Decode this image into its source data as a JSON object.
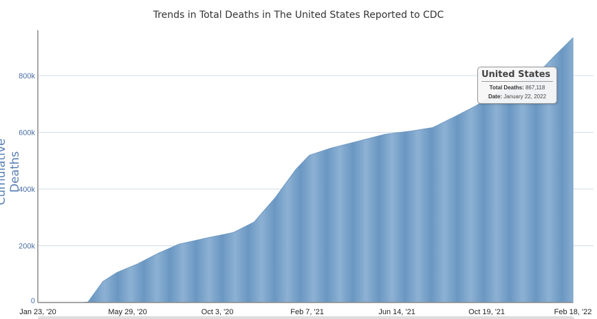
{
  "chart_data": {
    "type": "area",
    "title": "Trends in Total Deaths in The United States Reported to CDC",
    "ylabel": "Cumulative Deaths",
    "xlabel": "",
    "ylim": [
      0,
      960000
    ],
    "xlim": [
      "2020-01-23",
      "2022-02-18"
    ],
    "grid": true,
    "y_ticks": [
      "0",
      "200k",
      "400k",
      "600k",
      "800k"
    ],
    "y_tick_values": [
      0,
      200000,
      400000,
      600000,
      800000
    ],
    "x_ticks": [
      "Jan 23, '20",
      "May 29, '20",
      "Oct 3, '20",
      "Feb 7, '21",
      "Jun 14, '21",
      "Oct 19, '21",
      "Feb 18, '22"
    ],
    "x_tick_dates": [
      "2020-01-23",
      "2020-05-29",
      "2020-10-03",
      "2021-02-07",
      "2021-06-14",
      "2021-10-19",
      "2022-02-18"
    ],
    "color": "#7aa3c9",
    "series": [
      {
        "x": [
          "2020-01-23",
          "2020-03-26",
          "2020-04-03",
          "2020-04-24",
          "2020-05-14",
          "2020-06-12",
          "2020-07-11",
          "2020-08-09",
          "2020-09-17",
          "2020-10-26",
          "2020-11-24",
          "2020-12-24",
          "2021-01-22",
          "2021-02-10",
          "2021-03-11",
          "2021-04-19",
          "2021-05-28",
          "2021-07-06",
          "2021-08-04",
          "2021-09-03",
          "2021-10-02",
          "2021-10-31",
          "2021-11-29",
          "2022-01-07",
          "2022-01-22",
          "2022-02-18"
        ],
        "values": [
          0,
          0,
          2000,
          74000,
          106000,
          136000,
          173000,
          205000,
          227000,
          247000,
          284000,
          370000,
          469000,
          519000,
          543000,
          568000,
          593000,
          605000,
          617000,
          654000,
          691000,
          736000,
          770000,
          827000,
          867118,
          933000
        ]
      }
    ],
    "tooltip": {
      "title": "United States",
      "deaths_label": "Total Deaths:",
      "deaths_value": "867,118",
      "date_label": "Date:",
      "date_value": "January 22, 2022"
    }
  }
}
